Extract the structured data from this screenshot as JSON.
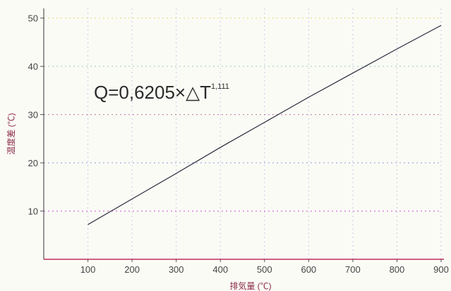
{
  "chart_data": {
    "type": "line",
    "title": "",
    "xlabel": "排気量 (℃)",
    "ylabel": "温度差 (℃)",
    "xlim": [
      0,
      900
    ],
    "ylim": [
      0,
      52
    ],
    "x_ticks": [
      100,
      200,
      300,
      400,
      500,
      600,
      700,
      800,
      900
    ],
    "y_ticks": [
      10,
      20,
      30,
      40,
      50
    ],
    "grid": true,
    "annotation": {
      "main": "Q=0,6205×△T",
      "exponent": "1,111"
    },
    "series": [
      {
        "color": "#2a2a3a",
        "x": [
          100,
          200,
          300,
          400,
          500,
          600,
          700,
          800,
          900
        ],
        "y": [
          7.2,
          12.5,
          17.8,
          23.2,
          28.4,
          33.6,
          38.6,
          43.6,
          48.5
        ]
      }
    ],
    "colors": {
      "x_grid": "#c9c9e6",
      "y_grid_10": "#d36ad6",
      "y_grid_20": "#8fa8d8",
      "y_grid_30": "#c48ab8",
      "y_grid_40": "#a8d4c0",
      "y_grid_50": "#e6e07a",
      "x_axis": "#c0305a",
      "y_axis": "#555555"
    }
  }
}
